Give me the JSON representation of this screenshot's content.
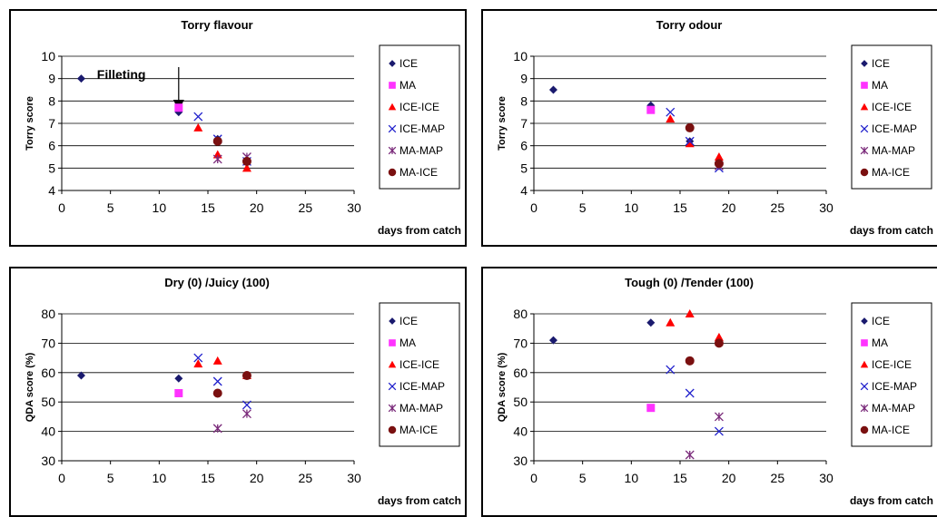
{
  "colors": {
    "ICE": "#1a1a6e",
    "MA": "#ff33ff",
    "ICE-ICE": "#ff0000",
    "ICE-MAP": "#1f1fcc",
    "MA-MAP": "#7a2a7a",
    "MA-ICE": "#7a1010"
  },
  "chart_data": [
    {
      "type": "scatter",
      "title": "Torry flavour",
      "xlabel": "days from catch",
      "ylabel": "Torry score",
      "xlim": [
        0,
        30
      ],
      "ylim": [
        4,
        10
      ],
      "xticks": [
        "0",
        "5",
        "10",
        "15",
        "20",
        "25",
        "30"
      ],
      "yticks": [
        "4",
        "5",
        "6",
        "7",
        "8",
        "9",
        "10"
      ],
      "grid": true,
      "legend": "right",
      "annotation": {
        "text": "Filleting",
        "arrow_x": 12
      },
      "series": [
        {
          "name": "ICE",
          "marker": "diamond",
          "points": [
            [
              2,
              9.0
            ],
            [
              12,
              7.5
            ],
            [
              16,
              6.3
            ]
          ]
        },
        {
          "name": "MA",
          "marker": "square",
          "points": [
            [
              12,
              7.7
            ]
          ]
        },
        {
          "name": "ICE-ICE",
          "marker": "triangle",
          "points": [
            [
              14,
              6.8
            ],
            [
              16,
              5.6
            ],
            [
              19,
              5.0
            ]
          ]
        },
        {
          "name": "ICE-MAP",
          "marker": "x",
          "points": [
            [
              14,
              7.3
            ],
            [
              16,
              6.3
            ],
            [
              19,
              5.3
            ]
          ]
        },
        {
          "name": "MA-MAP",
          "marker": "star",
          "points": [
            [
              16,
              5.4
            ],
            [
              19,
              5.5
            ]
          ]
        },
        {
          "name": "MA-ICE",
          "marker": "circle",
          "points": [
            [
              16,
              6.2
            ],
            [
              19,
              5.3
            ]
          ]
        }
      ]
    },
    {
      "type": "scatter",
      "title": "Torry odour",
      "xlabel": "days from catch",
      "ylabel": "Torry score",
      "xlim": [
        0,
        30
      ],
      "ylim": [
        4,
        10
      ],
      "xticks": [
        "0",
        "5",
        "10",
        "15",
        "20",
        "25",
        "30"
      ],
      "yticks": [
        "4",
        "5",
        "6",
        "7",
        "8",
        "9",
        "10"
      ],
      "grid": true,
      "legend": "right",
      "series": [
        {
          "name": "ICE",
          "marker": "diamond",
          "points": [
            [
              2,
              8.5
            ],
            [
              12,
              7.8
            ],
            [
              16,
              6.2
            ]
          ]
        },
        {
          "name": "MA",
          "marker": "square",
          "points": [
            [
              12,
              7.6
            ]
          ]
        },
        {
          "name": "ICE-ICE",
          "marker": "triangle",
          "points": [
            [
              14,
              7.2
            ],
            [
              16,
              6.1
            ],
            [
              19,
              5.5
            ]
          ]
        },
        {
          "name": "ICE-MAP",
          "marker": "x",
          "points": [
            [
              14,
              7.5
            ],
            [
              16,
              6.2
            ],
            [
              19,
              5.0
            ]
          ]
        },
        {
          "name": "MA-MAP",
          "marker": "star",
          "points": [
            [
              19,
              5.1
            ]
          ]
        },
        {
          "name": "MA-ICE",
          "marker": "circle",
          "points": [
            [
              16,
              6.8
            ],
            [
              19,
              5.2
            ]
          ]
        }
      ]
    },
    {
      "type": "scatter",
      "title": "Dry (0) /Juicy (100)",
      "xlabel": "days from catch",
      "ylabel": "QDA score (%)",
      "xlim": [
        0,
        30
      ],
      "ylim": [
        30,
        80
      ],
      "xticks": [
        "0",
        "5",
        "10",
        "15",
        "20",
        "25",
        "30"
      ],
      "yticks": [
        "30",
        "40",
        "50",
        "60",
        "70",
        "80"
      ],
      "grid": true,
      "legend": "right",
      "series": [
        {
          "name": "ICE",
          "marker": "diamond",
          "points": [
            [
              2,
              59
            ],
            [
              12,
              58
            ],
            [
              16,
              53
            ]
          ]
        },
        {
          "name": "MA",
          "marker": "square",
          "points": [
            [
              12,
              53
            ]
          ]
        },
        {
          "name": "ICE-ICE",
          "marker": "triangle",
          "points": [
            [
              14,
              63
            ],
            [
              16,
              64
            ],
            [
              19,
              59
            ]
          ]
        },
        {
          "name": "ICE-MAP",
          "marker": "x",
          "points": [
            [
              14,
              65
            ],
            [
              16,
              57
            ],
            [
              19,
              49
            ]
          ]
        },
        {
          "name": "MA-MAP",
          "marker": "star",
          "points": [
            [
              16,
              41
            ],
            [
              19,
              46
            ]
          ]
        },
        {
          "name": "MA-ICE",
          "marker": "circle",
          "points": [
            [
              16,
              53
            ],
            [
              19,
              59
            ]
          ]
        }
      ]
    },
    {
      "type": "scatter",
      "title": "Tough (0) /Tender (100)",
      "xlabel": "days from catch",
      "ylabel": "QDA score (%)",
      "xlim": [
        0,
        30
      ],
      "ylim": [
        30,
        80
      ],
      "xticks": [
        "0",
        "5",
        "10",
        "15",
        "20",
        "25",
        "30"
      ],
      "yticks": [
        "30",
        "40",
        "50",
        "60",
        "70",
        "80"
      ],
      "grid": true,
      "legend": "right",
      "series": [
        {
          "name": "ICE",
          "marker": "diamond",
          "points": [
            [
              2,
              71
            ],
            [
              12,
              77
            ]
          ]
        },
        {
          "name": "MA",
          "marker": "square",
          "points": [
            [
              12,
              48
            ]
          ]
        },
        {
          "name": "ICE-ICE",
          "marker": "triangle",
          "points": [
            [
              14,
              77
            ],
            [
              16,
              80
            ],
            [
              19,
              72
            ]
          ]
        },
        {
          "name": "ICE-MAP",
          "marker": "x",
          "points": [
            [
              14,
              61
            ],
            [
              16,
              53
            ],
            [
              19,
              40
            ]
          ]
        },
        {
          "name": "MA-MAP",
          "marker": "star",
          "points": [
            [
              16,
              32
            ],
            [
              19,
              45
            ]
          ]
        },
        {
          "name": "MA-ICE",
          "marker": "circle",
          "points": [
            [
              16,
              64
            ],
            [
              19,
              70
            ]
          ]
        }
      ]
    }
  ]
}
